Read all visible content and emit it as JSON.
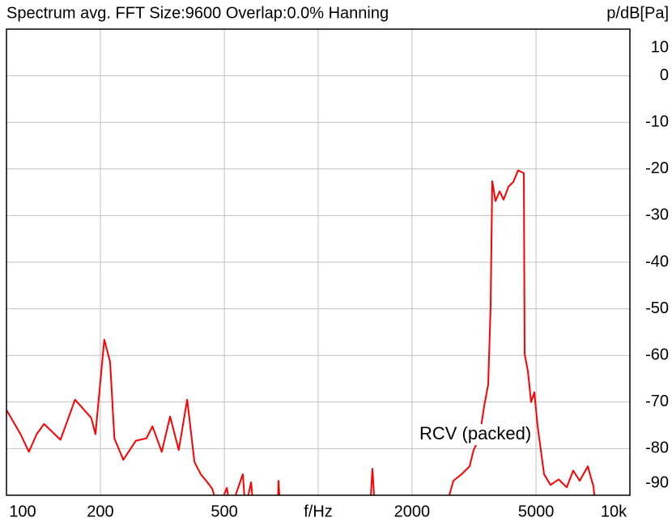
{
  "chart_data": {
    "type": "line",
    "title": "Spectrum avg.  FFT Size:9600  Overlap:0.0%  Hanning",
    "y_label": "p/dB[Pa]",
    "x_label": "f/Hz",
    "annotation": "RCV (packed)",
    "x_scale": "log",
    "grid": true,
    "xlim": [
      100,
      10000
    ],
    "xticks": [
      100,
      200,
      500,
      2000,
      5000,
      {
        "value": 10000,
        "label": "10k"
      }
    ],
    "xgrid": [
      200,
      500,
      1000,
      2000,
      5000
    ],
    "ylim": [
      -90,
      10
    ],
    "yticks": [
      10,
      0,
      -10,
      -20,
      -30,
      -40,
      -50,
      -60,
      -70,
      -80,
      -90
    ],
    "series": [
      {
        "name": "RCV (packed)",
        "color": "#ff0000",
        "x": [
          100,
          111,
          118,
          125,
          132,
          149,
          166,
          187,
          193,
          206,
          215,
          222,
          237,
          260,
          281,
          294,
          315,
          335,
          357,
          380,
          401,
          420,
          441,
          457,
          479,
          509,
          524,
          573,
          584,
          609,
          620,
          742,
          746,
          755,
          1466,
          1493,
          1520,
          2557,
          2715,
          2883,
          3060,
          3153,
          3288,
          3408,
          3512,
          3575,
          3618,
          3706,
          3819,
          3934,
          4078,
          4227,
          4382,
          4568,
          4596,
          4707,
          4821,
          4938,
          5057,
          5180,
          5305,
          5566,
          5908,
          6271,
          6579,
          6902,
          7328,
          7641,
          7780
        ],
        "values": [
          -71.7,
          -76.9,
          -80.7,
          -76.9,
          -74.7,
          -78.1,
          -69.5,
          -73.4,
          -76.9,
          -56.6,
          -61.4,
          -77.8,
          -82.4,
          -78.3,
          -77.8,
          -75.2,
          -80.7,
          -73.1,
          -80.3,
          -69.5,
          -82.9,
          -85.5,
          -87.2,
          -88.6,
          -93,
          -88.4,
          -93,
          -85.5,
          -93,
          -87.2,
          -93,
          -93,
          -86.9,
          -93,
          -93,
          -84.3,
          -93,
          -93,
          -86.9,
          -85.5,
          -83.8,
          -80.3,
          -77.8,
          -70.9,
          -66.2,
          -49.3,
          -22.6,
          -26.9,
          -24.8,
          -26.6,
          -23.8,
          -22.8,
          -20.3,
          -20.9,
          -59.7,
          -63.4,
          -70.0,
          -67.9,
          -75.2,
          -80.3,
          -85.5,
          -87.8,
          -86.6,
          -88.3,
          -84.7,
          -86.9,
          -83.8,
          -88.1,
          -93
        ]
      }
    ]
  }
}
